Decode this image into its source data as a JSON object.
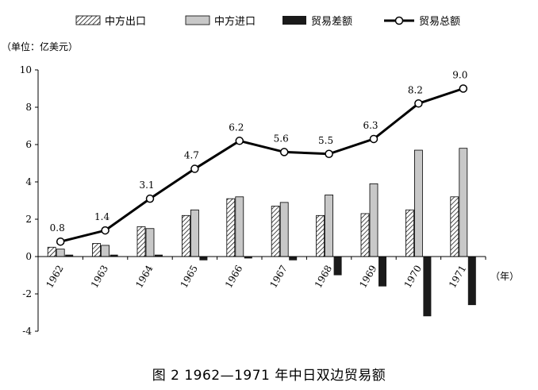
{
  "chart_data": {
    "type": "bar",
    "caption": "图 2  1962—1971 年中日双边贸易额",
    "unit_label": "（单位：亿美元）",
    "x_unit_label": "（年）",
    "categories": [
      "1962",
      "1963",
      "1964",
      "1965",
      "1966",
      "1967",
      "1968",
      "1969",
      "1970",
      "1971"
    ],
    "ylim": [
      -4,
      10
    ],
    "yticks": [
      -4,
      -2,
      0,
      2,
      4,
      6,
      8,
      10
    ],
    "grid": false,
    "legend_position": "top",
    "series": [
      {
        "name": "中方出口",
        "kind": "bar",
        "style": "hatched",
        "values": [
          0.5,
          0.7,
          1.6,
          2.2,
          3.1,
          2.7,
          2.2,
          2.3,
          2.5,
          3.2
        ]
      },
      {
        "name": "中方进口",
        "kind": "bar",
        "style": "gray",
        "values": [
          0.4,
          0.6,
          1.5,
          2.5,
          3.2,
          2.9,
          3.3,
          3.9,
          5.7,
          5.8
        ]
      },
      {
        "name": "贸易差额",
        "kind": "bar",
        "style": "black",
        "values": [
          0.1,
          0.1,
          0.1,
          -0.2,
          -0.1,
          -0.2,
          -1.0,
          -1.6,
          -3.2,
          -2.6
        ]
      },
      {
        "name": "贸易总额",
        "kind": "line",
        "style": "line-marker",
        "values": [
          0.8,
          1.4,
          3.1,
          4.7,
          6.2,
          5.6,
          5.5,
          6.3,
          8.2,
          9.0
        ],
        "data_labels": [
          "0.8",
          "1.4",
          "3.1",
          "4.7",
          "6.2",
          "5.6",
          "5.5",
          "6.3",
          "8.2",
          "9.0"
        ]
      }
    ],
    "colors": {
      "gray": "#c8c8c8",
      "black": "#1a1a1a",
      "line": "#000000"
    }
  }
}
